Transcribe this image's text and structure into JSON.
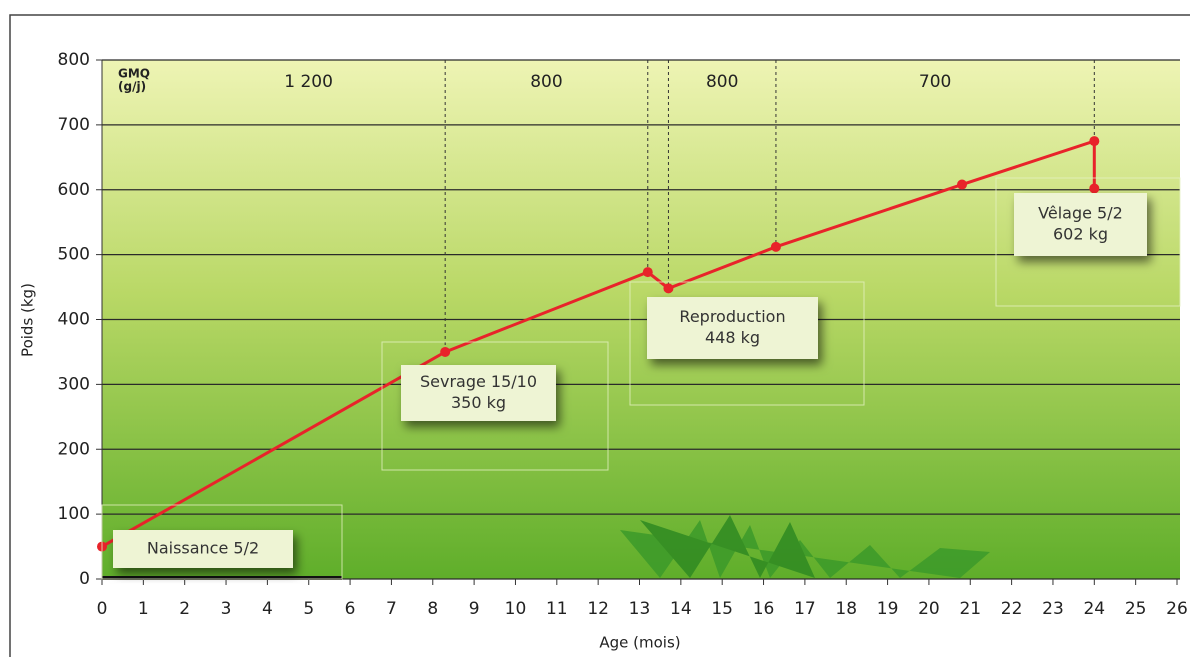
{
  "chart_data": {
    "type": "line",
    "xlabel": "Age (mois)",
    "ylabel": "Poids (kg)",
    "gmq_label": [
      "GMQ",
      "(g/j)"
    ],
    "gmq": [
      {
        "value": 1200,
        "label": "1 200"
      },
      800,
      800,
      700
    ],
    "x": [
      0,
      8.3,
      13.2,
      13.7,
      16.3,
      20.8,
      24,
      24
    ],
    "values": [
      50,
      350,
      473,
      448,
      512,
      608,
      675,
      602
    ],
    "color": "#e8232a",
    "xlim": [
      0,
      26
    ],
    "xticks": [
      0,
      1,
      2,
      3,
      4,
      5,
      6,
      7,
      8,
      9,
      10,
      11,
      12,
      13,
      14,
      15,
      16,
      17,
      18,
      19,
      20,
      21,
      22,
      23,
      24,
      25,
      26
    ],
    "ylim": [
      0,
      800
    ],
    "yticks": [
      0,
      100,
      200,
      300,
      400,
      500,
      600,
      700,
      800
    ],
    "grid": true,
    "annotations": [
      {
        "lines": [
          "Naissance 5/2"
        ]
      },
      {
        "lines": [
          "Sevrage 15/10",
          "350 kg"
        ]
      },
      {
        "lines": [
          "Reproduction",
          "448 kg"
        ]
      },
      {
        "lines": [
          "Vêlage 5/2",
          "602 kg"
        ]
      }
    ]
  }
}
